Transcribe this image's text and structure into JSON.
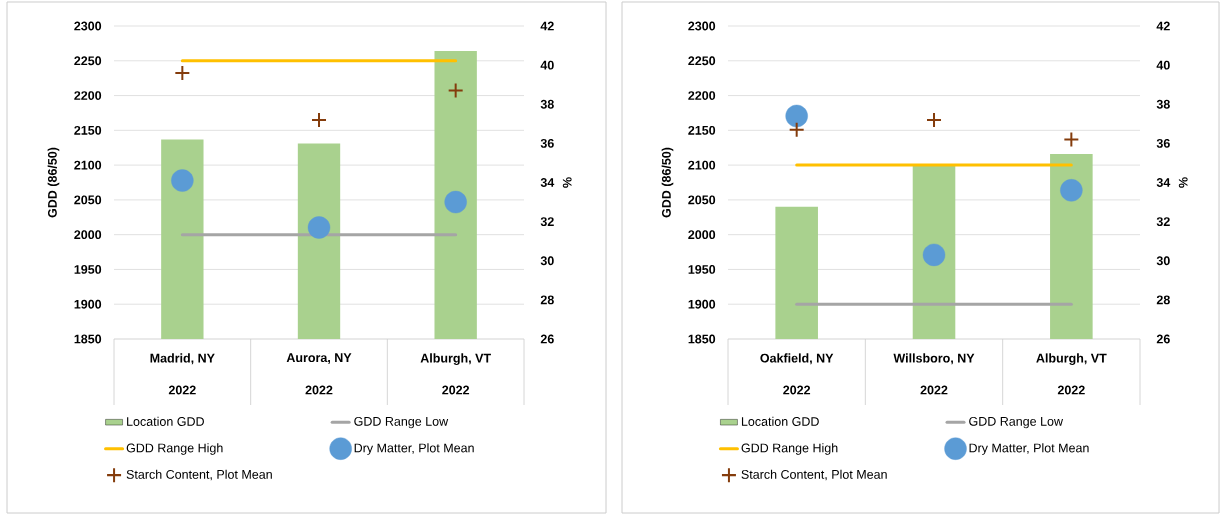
{
  "chart_data": [
    {
      "type": "bar",
      "categories": [
        "Madrid, NY",
        "Aurora, NY",
        "Alburgh, VT"
      ],
      "ylabel": "GDD (86/50)",
      "y2label": "%",
      "ylim": [
        1850,
        2300
      ],
      "yticks": [
        1850,
        1900,
        1950,
        2000,
        2050,
        2100,
        2150,
        2200,
        2250,
        2300
      ],
      "y2lim": [
        26,
        42
      ],
      "y2ticks": [
        26,
        28,
        30,
        32,
        34,
        36,
        38,
        40,
        42
      ],
      "grid": "y",
      "legend": "bottom",
      "annotations": [
        "2022",
        "2022",
        "2022"
      ],
      "series": [
        {
          "name": "Location GDD",
          "color": "#a9d18e",
          "values": [
            2137,
            2131,
            2264
          ]
        },
        {
          "name": "GDD Range Low",
          "type": "line",
          "color": "#a5a5a5",
          "marker": "none",
          "line_style": "solid",
          "values": [
            2000,
            2000,
            2000
          ]
        },
        {
          "name": "GDD Range High",
          "type": "line",
          "color": "#ffc000",
          "marker": "none",
          "line_style": "solid",
          "values": [
            2250,
            2250,
            2250
          ]
        },
        {
          "name": "Dry Matter, Plot Mean",
          "type": "scatter",
          "axis": "y2",
          "color": "#5b9bd5",
          "marker": "circle",
          "values": [
            34.1,
            31.7,
            33.0
          ]
        },
        {
          "name": "Starch Content, Plot Mean",
          "type": "scatter",
          "axis": "y2",
          "color": "#843c0c",
          "marker": "cross",
          "values": [
            39.6,
            37.2,
            38.7
          ]
        }
      ]
    },
    {
      "type": "bar",
      "categories": [
        "Oakfield, NY",
        "Willsboro, NY",
        "Alburgh, VT"
      ],
      "ylabel": "GDD (86/50)",
      "y2label": "%",
      "ylim": [
        1850,
        2300
      ],
      "yticks": [
        1850,
        1900,
        1950,
        2000,
        2050,
        2100,
        2150,
        2200,
        2250,
        2300
      ],
      "y2lim": [
        26,
        42
      ],
      "y2ticks": [
        26,
        28,
        30,
        32,
        34,
        36,
        38,
        40,
        42
      ],
      "grid": "y",
      "legend": "bottom",
      "annotations": [
        "2022",
        "2022",
        "2022"
      ],
      "series": [
        {
          "name": "Location GDD",
          "color": "#a9d18e",
          "values": [
            2040,
            2100,
            2116
          ]
        },
        {
          "name": "GDD Range Low",
          "type": "line",
          "color": "#a5a5a5",
          "marker": "none",
          "line_style": "solid",
          "values": [
            1900,
            1900,
            1900
          ]
        },
        {
          "name": "GDD Range High",
          "type": "line",
          "color": "#ffc000",
          "marker": "none",
          "line_style": "solid",
          "values": [
            2100,
            2100,
            2100
          ]
        },
        {
          "name": "Dry Matter, Plot Mean",
          "type": "scatter",
          "axis": "y2",
          "color": "#5b9bd5",
          "marker": "circle",
          "values": [
            37.4,
            30.3,
            33.6
          ]
        },
        {
          "name": "Starch Content, Plot Mean",
          "type": "scatter",
          "axis": "y2",
          "color": "#843c0c",
          "marker": "cross",
          "values": [
            36.7,
            37.2,
            36.2
          ]
        }
      ]
    }
  ]
}
